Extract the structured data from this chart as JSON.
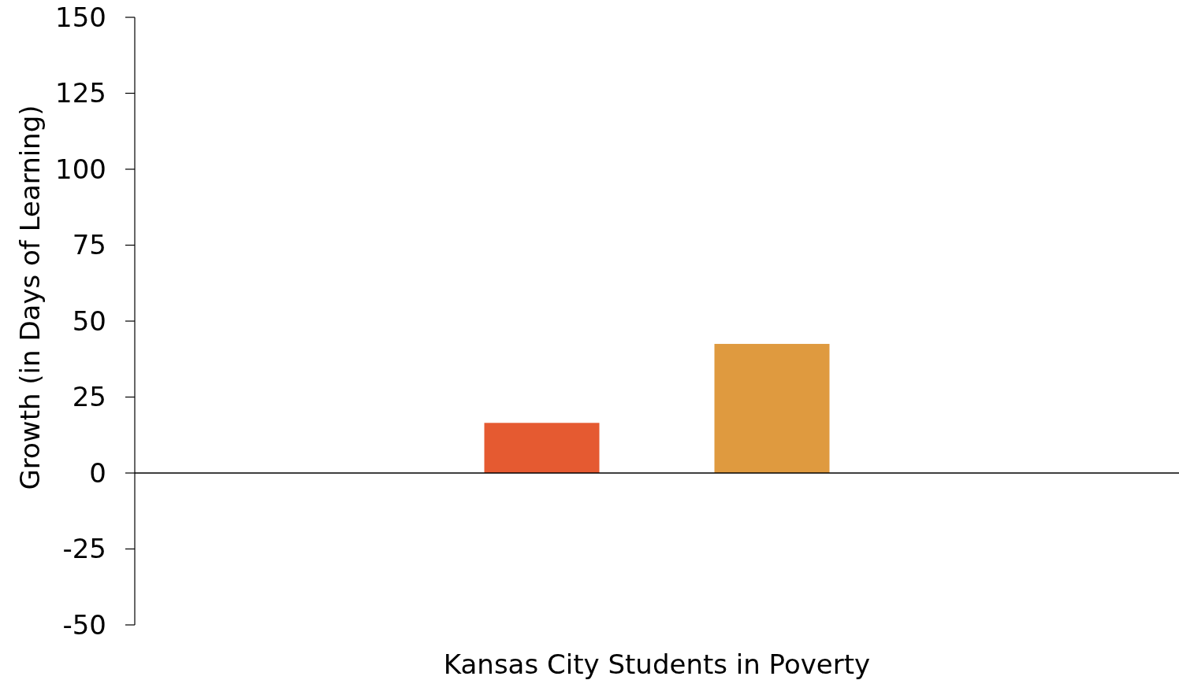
{
  "chart_data": {
    "type": "bar",
    "xlabel": "Kansas City Students in Poverty",
    "ylabel": "Growth (in Days of Learning)",
    "categories": [
      null
    ],
    "series": [
      {
        "color": "#e55a31",
        "values": [
          16.5
        ]
      },
      {
        "color": "#df9a3f",
        "values": [
          42.5
        ]
      }
    ],
    "ylim": [
      -50,
      150
    ],
    "yticks": [
      -50,
      -25,
      0,
      25,
      50,
      75,
      100,
      125,
      150
    ]
  }
}
